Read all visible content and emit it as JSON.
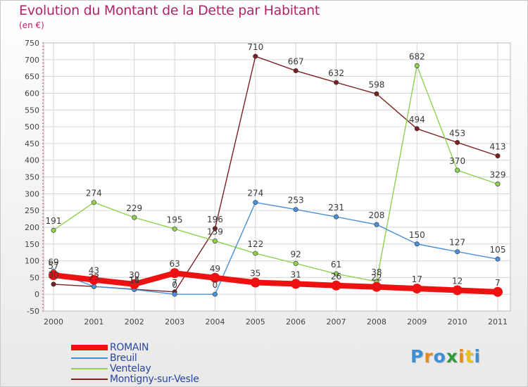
{
  "chart_data": {
    "type": "line",
    "title": "Evolution du Montant de la Dette par Habitant",
    "subtitle": "(en €)",
    "x": [
      "2000",
      "2001",
      "2002",
      "2003",
      "2004",
      "2005",
      "2006",
      "2007",
      "2008",
      "2009",
      "2010",
      "2011"
    ],
    "ylim": [
      -50,
      750
    ],
    "yticks": [
      -50,
      0,
      50,
      100,
      150,
      200,
      250,
      300,
      350,
      400,
      450,
      500,
      550,
      600,
      650,
      700,
      750
    ],
    "grid": true,
    "legend_position": "bottom-left",
    "series": [
      {
        "name": "Montigny-sur-Vesle",
        "color": "#7a2222",
        "values": [
          30,
          23,
          15,
          7,
          196,
          710,
          667,
          632,
          598,
          494,
          453,
          413
        ]
      },
      {
        "name": "Ventelay",
        "color": "#8fd14f",
        "values": [
          191,
          274,
          229,
          195,
          159,
          122,
          92,
          61,
          38,
          682,
          370,
          329
        ]
      },
      {
        "name": "Breuil",
        "color": "#4a90d9",
        "values": [
          69,
          23,
          14,
          0,
          0,
          274,
          253,
          231,
          208,
          150,
          127,
          105
        ]
      },
      {
        "name": "ROMAIN",
        "color": "#ee1111",
        "values": [
          57,
          43,
          30,
          63,
          49,
          35,
          31,
          26,
          22,
          17,
          12,
          7
        ]
      }
    ]
  },
  "legend": [
    {
      "label": "ROMAIN",
      "color": "#ee1111",
      "thickness": 8
    },
    {
      "label": "Breuil",
      "color": "#4a90d9",
      "thickness": 2
    },
    {
      "label": "Ventelay",
      "color": "#8fd14f",
      "thickness": 2
    },
    {
      "label": "Montigny-sur-Vesle",
      "color": "#7a2222",
      "thickness": 2
    }
  ],
  "logo": {
    "letters": [
      "P",
      "r",
      "o",
      "x",
      "i",
      "t",
      "i"
    ],
    "colors": [
      "#3a8fd6",
      "#e88a1a",
      "#3a8fd6",
      "#2a9d3a",
      "#e88a1a",
      "#e8c21a",
      "#3a8fd6"
    ]
  }
}
